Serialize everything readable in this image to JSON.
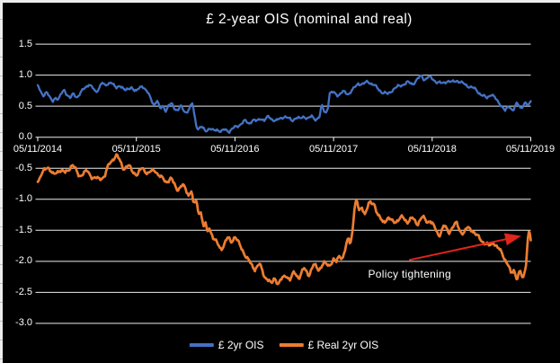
{
  "chart": {
    "title": "£ 2-year OIS (nominal and real)",
    "background_color": "#000000",
    "text_color": "#ffffff",
    "gridline_color": "#ededed",
    "annotation": {
      "text": "Policy tightening",
      "arrow_color": "#e0251a"
    },
    "legend": [
      {
        "id": "nominal",
        "label": "£ 2yr OIS",
        "color": "#4472c4"
      },
      {
        "id": "real",
        "label": "£ Real 2yr OIS",
        "color": "#ed7d31"
      }
    ]
  },
  "chart_data": {
    "type": "line",
    "title": "£ 2-year OIS (nominal and real)",
    "x_unit": "years_since_05/11/2014",
    "xlim": [
      0,
      5
    ],
    "ylim": [
      -3.0,
      1.5
    ],
    "grid": "horizontal",
    "legend_position": "bottom",
    "x_tick_labels": [
      "05/11/2014",
      "05/11/2015",
      "05/11/2016",
      "05/11/2017",
      "05/11/2018",
      "05/11/2019"
    ],
    "y_tick_labels": [
      "1.5",
      "1.0",
      "0.5",
      "0.0",
      "-0.5",
      "-1.0",
      "-1.5",
      "-2.0",
      "-2.5",
      "-3.0"
    ],
    "annotation": {
      "text": "Policy tightening",
      "text_t": 3.35,
      "text_v": -2.11,
      "arrow_from_t": 3.765,
      "arrow_from_v": -1.98,
      "arrow_to_t": 4.877,
      "arrow_to_v": -1.6
    },
    "series": [
      {
        "id": "nominal",
        "name": "£ 2yr OIS",
        "color": "#4472c4",
        "points": [
          [
            0.0,
            0.84
          ],
          [
            0.03,
            0.72
          ],
          [
            0.06,
            0.68
          ],
          [
            0.09,
            0.74
          ],
          [
            0.12,
            0.63
          ],
          [
            0.15,
            0.58
          ],
          [
            0.18,
            0.65
          ],
          [
            0.21,
            0.6
          ],
          [
            0.24,
            0.7
          ],
          [
            0.27,
            0.77
          ],
          [
            0.3,
            0.68
          ],
          [
            0.33,
            0.62
          ],
          [
            0.36,
            0.7
          ],
          [
            0.4,
            0.65
          ],
          [
            0.44,
            0.72
          ],
          [
            0.48,
            0.8
          ],
          [
            0.52,
            0.86
          ],
          [
            0.56,
            0.78
          ],
          [
            0.59,
            0.72
          ],
          [
            0.62,
            0.8
          ],
          [
            0.65,
            0.88
          ],
          [
            0.68,
            0.82
          ],
          [
            0.71,
            0.86
          ],
          [
            0.74,
            0.9
          ],
          [
            0.77,
            0.83
          ],
          [
            0.8,
            0.78
          ],
          [
            0.83,
            0.85
          ],
          [
            0.86,
            0.8
          ],
          [
            0.89,
            0.74
          ],
          [
            0.92,
            0.78
          ],
          [
            0.95,
            0.82
          ],
          [
            0.98,
            0.75
          ],
          [
            1.0,
            0.73
          ],
          [
            1.03,
            0.8
          ],
          [
            1.06,
            0.84
          ],
          [
            1.09,
            0.76
          ],
          [
            1.12,
            0.7
          ],
          [
            1.15,
            0.62
          ],
          [
            1.18,
            0.52
          ],
          [
            1.21,
            0.58
          ],
          [
            1.24,
            0.46
          ],
          [
            1.27,
            0.52
          ],
          [
            1.3,
            0.42
          ],
          [
            1.33,
            0.5
          ],
          [
            1.36,
            0.55
          ],
          [
            1.39,
            0.47
          ],
          [
            1.42,
            0.42
          ],
          [
            1.45,
            0.5
          ],
          [
            1.48,
            0.44
          ],
          [
            1.51,
            0.4
          ],
          [
            1.54,
            0.46
          ],
          [
            1.57,
            0.55
          ],
          [
            1.59,
            0.35
          ],
          [
            1.61,
            0.18
          ],
          [
            1.63,
            0.13
          ],
          [
            1.66,
            0.16
          ],
          [
            1.7,
            0.11
          ],
          [
            1.74,
            0.14
          ],
          [
            1.78,
            0.1
          ],
          [
            1.82,
            0.13
          ],
          [
            1.86,
            0.09
          ],
          [
            1.9,
            0.12
          ],
          [
            1.94,
            0.1
          ],
          [
            1.98,
            0.14
          ],
          [
            2.02,
            0.17
          ],
          [
            2.06,
            0.22
          ],
          [
            2.1,
            0.26
          ],
          [
            2.14,
            0.22
          ],
          [
            2.18,
            0.28
          ],
          [
            2.22,
            0.25
          ],
          [
            2.26,
            0.31
          ],
          [
            2.3,
            0.27
          ],
          [
            2.34,
            0.33
          ],
          [
            2.38,
            0.29
          ],
          [
            2.42,
            0.26
          ],
          [
            2.46,
            0.3
          ],
          [
            2.5,
            0.34
          ],
          [
            2.54,
            0.3
          ],
          [
            2.58,
            0.27
          ],
          [
            2.62,
            0.32
          ],
          [
            2.66,
            0.29
          ],
          [
            2.7,
            0.34
          ],
          [
            2.74,
            0.3
          ],
          [
            2.78,
            0.33
          ],
          [
            2.82,
            0.29
          ],
          [
            2.86,
            0.33
          ],
          [
            2.88,
            0.52
          ],
          [
            2.9,
            0.43
          ],
          [
            2.92,
            0.4
          ],
          [
            2.94,
            0.46
          ],
          [
            2.96,
            0.7
          ],
          [
            3.0,
            0.72
          ],
          [
            3.05,
            0.68
          ],
          [
            3.1,
            0.73
          ],
          [
            3.15,
            0.7
          ],
          [
            3.2,
            0.77
          ],
          [
            3.25,
            0.87
          ],
          [
            3.3,
            0.85
          ],
          [
            3.35,
            0.9
          ],
          [
            3.4,
            0.85
          ],
          [
            3.45,
            0.78
          ],
          [
            3.5,
            0.72
          ],
          [
            3.55,
            0.69
          ],
          [
            3.6,
            0.77
          ],
          [
            3.65,
            0.81
          ],
          [
            3.7,
            0.85
          ],
          [
            3.75,
            0.88
          ],
          [
            3.8,
            0.86
          ],
          [
            3.85,
            0.93
          ],
          [
            3.89,
            0.99
          ],
          [
            3.92,
            0.93
          ],
          [
            3.96,
            0.97
          ],
          [
            4.0,
            0.94
          ],
          [
            4.05,
            0.89
          ],
          [
            4.1,
            0.86
          ],
          [
            4.15,
            0.91
          ],
          [
            4.2,
            0.88
          ],
          [
            4.25,
            0.92
          ],
          [
            4.3,
            0.87
          ],
          [
            4.35,
            0.84
          ],
          [
            4.4,
            0.8
          ],
          [
            4.45,
            0.76
          ],
          [
            4.5,
            0.68
          ],
          [
            4.55,
            0.63
          ],
          [
            4.6,
            0.7
          ],
          [
            4.65,
            0.6
          ],
          [
            4.7,
            0.52
          ],
          [
            4.74,
            0.42
          ],
          [
            4.78,
            0.5
          ],
          [
            4.82,
            0.44
          ],
          [
            4.86,
            0.54
          ],
          [
            4.9,
            0.47
          ],
          [
            4.94,
            0.56
          ],
          [
            4.97,
            0.5
          ],
          [
            5.0,
            0.58
          ]
        ]
      },
      {
        "id": "real",
        "name": "£ Real 2yr OIS",
        "color": "#ed7d31",
        "points": [
          [
            0.0,
            -0.72
          ],
          [
            0.06,
            -0.55
          ],
          [
            0.1,
            -0.46
          ],
          [
            0.16,
            -0.62
          ],
          [
            0.22,
            -0.52
          ],
          [
            0.28,
            -0.58
          ],
          [
            0.35,
            -0.44
          ],
          [
            0.42,
            -0.62
          ],
          [
            0.5,
            -0.55
          ],
          [
            0.56,
            -0.65
          ],
          [
            0.62,
            -0.68
          ],
          [
            0.68,
            -0.62
          ],
          [
            0.72,
            -0.45
          ],
          [
            0.77,
            -0.33
          ],
          [
            0.8,
            -0.29
          ],
          [
            0.83,
            -0.38
          ],
          [
            0.87,
            -0.5
          ],
          [
            0.92,
            -0.46
          ],
          [
            0.96,
            -0.55
          ],
          [
            1.01,
            -0.6
          ],
          [
            1.06,
            -0.5
          ],
          [
            1.12,
            -0.58
          ],
          [
            1.19,
            -0.53
          ],
          [
            1.25,
            -0.65
          ],
          [
            1.3,
            -0.72
          ],
          [
            1.35,
            -0.66
          ],
          [
            1.41,
            -0.84
          ],
          [
            1.47,
            -0.77
          ],
          [
            1.53,
            -0.93
          ],
          [
            1.56,
            -0.84
          ],
          [
            1.58,
            -1.1
          ],
          [
            1.61,
            -1.02
          ],
          [
            1.63,
            -1.25
          ],
          [
            1.65,
            -1.15
          ],
          [
            1.68,
            -1.45
          ],
          [
            1.7,
            -1.38
          ],
          [
            1.72,
            -1.55
          ],
          [
            1.74,
            -1.45
          ],
          [
            1.78,
            -1.62
          ],
          [
            1.82,
            -1.72
          ],
          [
            1.86,
            -1.8
          ],
          [
            1.9,
            -1.7
          ],
          [
            1.93,
            -1.62
          ],
          [
            1.96,
            -1.68
          ],
          [
            2.0,
            -1.6
          ],
          [
            2.04,
            -1.72
          ],
          [
            2.08,
            -1.82
          ],
          [
            2.12,
            -1.95
          ],
          [
            2.16,
            -2.04
          ],
          [
            2.2,
            -2.12
          ],
          [
            2.25,
            -2.05
          ],
          [
            2.3,
            -2.24
          ],
          [
            2.34,
            -2.3
          ],
          [
            2.37,
            -2.38
          ],
          [
            2.4,
            -2.26
          ],
          [
            2.44,
            -2.36
          ],
          [
            2.48,
            -2.28
          ],
          [
            2.52,
            -2.22
          ],
          [
            2.56,
            -2.3
          ],
          [
            2.6,
            -2.18
          ],
          [
            2.65,
            -2.26
          ],
          [
            2.7,
            -2.12
          ],
          [
            2.75,
            -2.21
          ],
          [
            2.8,
            -2.06
          ],
          [
            2.85,
            -2.13
          ],
          [
            2.9,
            -2.03
          ],
          [
            2.95,
            -2.07
          ],
          [
            3.0,
            -1.97
          ],
          [
            3.03,
            -2.02
          ],
          [
            3.06,
            -1.9
          ],
          [
            3.09,
            -1.95
          ],
          [
            3.12,
            -1.8
          ],
          [
            3.15,
            -1.63
          ],
          [
            3.17,
            -1.72
          ],
          [
            3.19,
            -1.53
          ],
          [
            3.21,
            -1.15
          ],
          [
            3.23,
            -1.02
          ],
          [
            3.26,
            -1.19
          ],
          [
            3.29,
            -1.12
          ],
          [
            3.32,
            -1.24
          ],
          [
            3.36,
            -1.07
          ],
          [
            3.41,
            -1.05
          ],
          [
            3.45,
            -1.27
          ],
          [
            3.5,
            -1.36
          ],
          [
            3.55,
            -1.31
          ],
          [
            3.6,
            -1.36
          ],
          [
            3.65,
            -1.34
          ],
          [
            3.7,
            -1.29
          ],
          [
            3.75,
            -1.36
          ],
          [
            3.8,
            -1.31
          ],
          [
            3.85,
            -1.39
          ],
          [
            3.9,
            -1.29
          ],
          [
            3.95,
            -1.36
          ],
          [
            3.98,
            -1.34
          ],
          [
            4.03,
            -1.48
          ],
          [
            4.07,
            -1.58
          ],
          [
            4.12,
            -1.43
          ],
          [
            4.17,
            -1.53
          ],
          [
            4.21,
            -1.44
          ],
          [
            4.25,
            -1.39
          ],
          [
            4.28,
            -1.5
          ],
          [
            4.32,
            -1.55
          ],
          [
            4.36,
            -1.46
          ],
          [
            4.4,
            -1.48
          ],
          [
            4.44,
            -1.57
          ],
          [
            4.48,
            -1.63
          ],
          [
            4.53,
            -1.7
          ],
          [
            4.58,
            -1.76
          ],
          [
            4.62,
            -1.68
          ],
          [
            4.66,
            -1.78
          ],
          [
            4.71,
            -1.87
          ],
          [
            4.75,
            -2.0
          ],
          [
            4.77,
            -2.06
          ],
          [
            4.8,
            -2.21
          ],
          [
            4.83,
            -2.13
          ],
          [
            4.86,
            -2.28
          ],
          [
            4.89,
            -2.16
          ],
          [
            4.92,
            -2.3
          ],
          [
            4.95,
            -2.06
          ],
          [
            4.97,
            -1.63
          ],
          [
            4.985,
            -1.48
          ],
          [
            5.0,
            -1.66
          ]
        ]
      }
    ]
  }
}
